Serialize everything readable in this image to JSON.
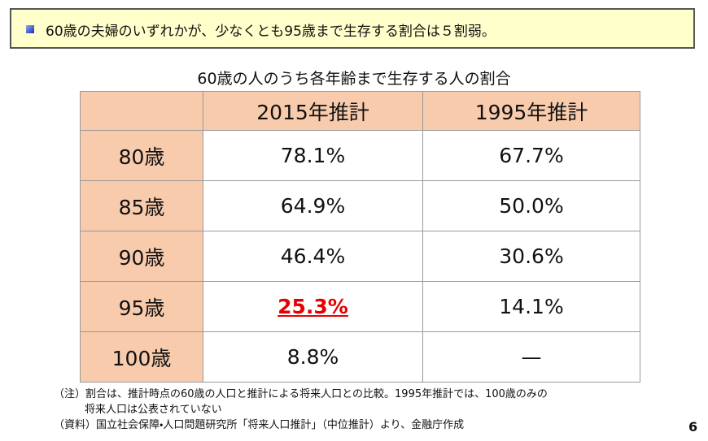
{
  "header": {
    "text": "60歳の夫婦のいずれかが、少なくとも95歳まで生存する割合は５割弱。"
  },
  "table": {
    "title": "60歳の人のうち各年齢まで生存する人の割合",
    "columns": [
      "2015年推計",
      "1995年推計"
    ],
    "rows": [
      {
        "label": "80歳",
        "values": [
          "78.1%",
          "67.7%"
        ]
      },
      {
        "label": "85歳",
        "values": [
          "64.9%",
          "50.0%"
        ]
      },
      {
        "label": "90歳",
        "values": [
          "46.4%",
          "30.6%"
        ]
      },
      {
        "label": "95歳",
        "values": [
          "25.3%",
          "14.1%"
        ]
      },
      {
        "label": "100歳",
        "values": [
          "8.8%",
          "—"
        ]
      }
    ]
  },
  "notes": [
    "（注）割合は、推計時点の60歳の人口と推計による将来人口との比較。1995年推計では、100歳のみの",
    "将来人口は公表されていない",
    "（資料）国立社会保障・人口問題研究所「将来人口推計」（中位推計）より、金融庁作成"
  ],
  "page_number": "6"
}
